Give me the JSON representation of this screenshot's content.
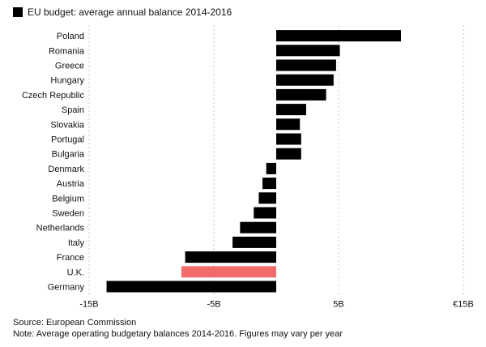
{
  "legend": {
    "label": "EU budget: average annual balance 2014-2016",
    "color": "#000000"
  },
  "chart_data": {
    "type": "bar",
    "orientation": "horizontal",
    "title": "",
    "categories": [
      "Poland",
      "Romania",
      "Greece",
      "Hungary",
      "Czech Republic",
      "Spain",
      "Slovakia",
      "Portugal",
      "Bulgaria",
      "Denmark",
      "Austria",
      "Belgium",
      "Sweden",
      "Netherlands",
      "Italy",
      "France",
      "U.K.",
      "Germany"
    ],
    "values": [
      10.0,
      5.1,
      4.8,
      4.6,
      4.0,
      2.4,
      1.9,
      2.0,
      2.0,
      -0.8,
      -1.1,
      -1.4,
      -1.8,
      -2.9,
      -3.5,
      -7.3,
      -7.6,
      -13.6
    ],
    "bar_color": "#000000",
    "highlight": {
      "category": "U.K.",
      "color": "#f26b6b"
    },
    "xlim": [
      -15,
      15
    ],
    "xticks": [
      -15,
      -5,
      5,
      15
    ],
    "xtick_labels": [
      "-15B",
      "-5B",
      "5B",
      "€15B"
    ],
    "grid": "vertical dashed",
    "xlabel": "",
    "ylabel": ""
  },
  "footer": {
    "source": "Source: European Commission",
    "note": "Note: Average operating budgetary balances 2014-2016. Figures may vary per year"
  }
}
